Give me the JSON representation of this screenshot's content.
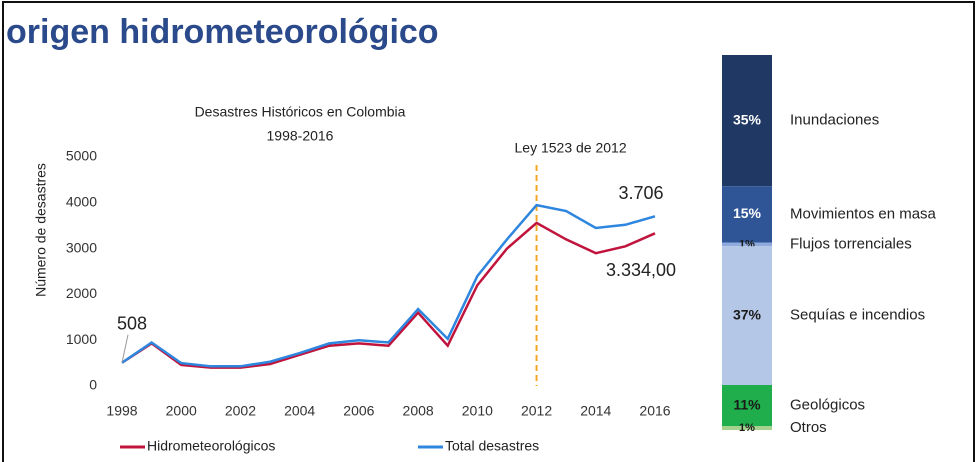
{
  "page_title": "origen hidrometeorológico",
  "chart_data": [
    {
      "type": "line",
      "title": "Desastres Históricos en Colombia",
      "subtitle": "1998-2016",
      "y_label": "Número de desastres",
      "x": [
        1998,
        1999,
        2000,
        2001,
        2002,
        2003,
        2004,
        2005,
        2006,
        2007,
        2008,
        2009,
        2010,
        2011,
        2012,
        2013,
        2014,
        2015,
        2016
      ],
      "xlim": [
        1998,
        2016
      ],
      "xticks": [
        1998,
        2000,
        2002,
        2004,
        2006,
        2008,
        2010,
        2012,
        2014,
        2016
      ],
      "ylim": [
        0,
        5000
      ],
      "yticks": [
        0,
        1000,
        2000,
        3000,
        4000,
        5000
      ],
      "grid": false,
      "legend": "bottom",
      "series": [
        {
          "name": "Hidrometeorológicos",
          "color": "#c0143c",
          "values": [
            508,
            930,
            460,
            400,
            400,
            480,
            680,
            880,
            930,
            880,
            1600,
            880,
            2200,
            3000,
            3560,
            3200,
            2900,
            3050,
            3334
          ],
          "value_labels": [
            null,
            null,
            null,
            null,
            null,
            null,
            null,
            null,
            null,
            null,
            null,
            null,
            null,
            null,
            null,
            null,
            null,
            null,
            "3.334,00"
          ]
        },
        {
          "name": "Total desastres",
          "color": "#2e86de",
          "values": [
            508,
            950,
            500,
            430,
            430,
            530,
            720,
            930,
            1000,
            950,
            1680,
            1030,
            2400,
            3200,
            3950,
            3820,
            3450,
            3520,
            3706
          ],
          "value_labels": [
            "508",
            null,
            null,
            null,
            null,
            null,
            null,
            null,
            null,
            null,
            null,
            null,
            null,
            null,
            null,
            null,
            null,
            null,
            "3.706"
          ]
        }
      ],
      "annotations": [
        {
          "text": "Ley 1523 de 2012",
          "x": 2012,
          "color": "#f5a623"
        }
      ]
    },
    {
      "type": "stacked_bar",
      "series": [
        {
          "name": "Inundaciones",
          "color": "#1f3864",
          "values": [
            35
          ],
          "value_labels": [
            "35%"
          ]
        },
        {
          "name": "Movimientos en masa",
          "color": "#2f5597",
          "values": [
            15
          ],
          "value_labels": [
            "15%"
          ]
        },
        {
          "name": "Flujos torrenciales",
          "color": "#8faadc",
          "values": [
            1
          ],
          "value_labels": [
            "1%"
          ]
        },
        {
          "name": "Sequías e incendios",
          "color": "#b4c7e7",
          "values": [
            37
          ],
          "value_labels": [
            "37%"
          ]
        },
        {
          "name": "Geológicos",
          "color": "#1fae4b",
          "values": [
            11
          ],
          "value_labels": [
            "11%"
          ]
        },
        {
          "name": "Otros",
          "color": "#a9d18e",
          "values": [
            1
          ],
          "value_labels": [
            "1%"
          ]
        }
      ]
    }
  ]
}
